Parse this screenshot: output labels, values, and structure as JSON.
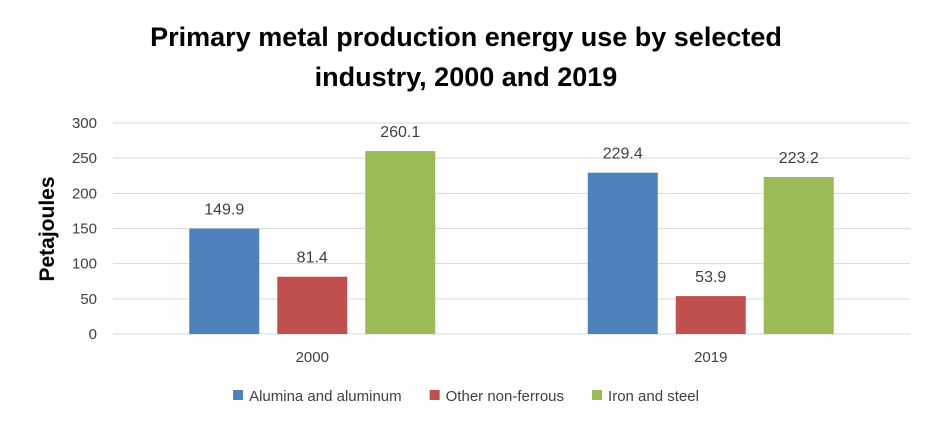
{
  "chart_data": {
    "type": "bar",
    "title_lines": [
      "Primary metal production energy use by selected",
      "industry, 2000 and 2019"
    ],
    "ylabel": "Petajoules",
    "xlabel": "",
    "categories": [
      "2000",
      "2019"
    ],
    "series": [
      {
        "name": "Alumina and aluminum",
        "color": "#4f81bd",
        "values": [
          149.9,
          229.4
        ],
        "labels": [
          "149.9",
          "229.4"
        ]
      },
      {
        "name": "Other non-ferrous",
        "color": "#c0504d",
        "values": [
          81.4,
          53.9
        ],
        "labels": [
          "81.4",
          "53.9"
        ]
      },
      {
        "name": "Iron and steel",
        "color": "#9bbb59",
        "values": [
          260.1,
          223.2
        ],
        "labels": [
          "260.1",
          "223.2"
        ]
      }
    ],
    "ylim": [
      0,
      300
    ],
    "yticks": [
      "0",
      "50",
      "100",
      "150",
      "200",
      "250",
      "300"
    ],
    "ytick_values": [
      0,
      50,
      100,
      150,
      200,
      250,
      300
    ],
    "grid": true,
    "legend_position": "bottom"
  }
}
